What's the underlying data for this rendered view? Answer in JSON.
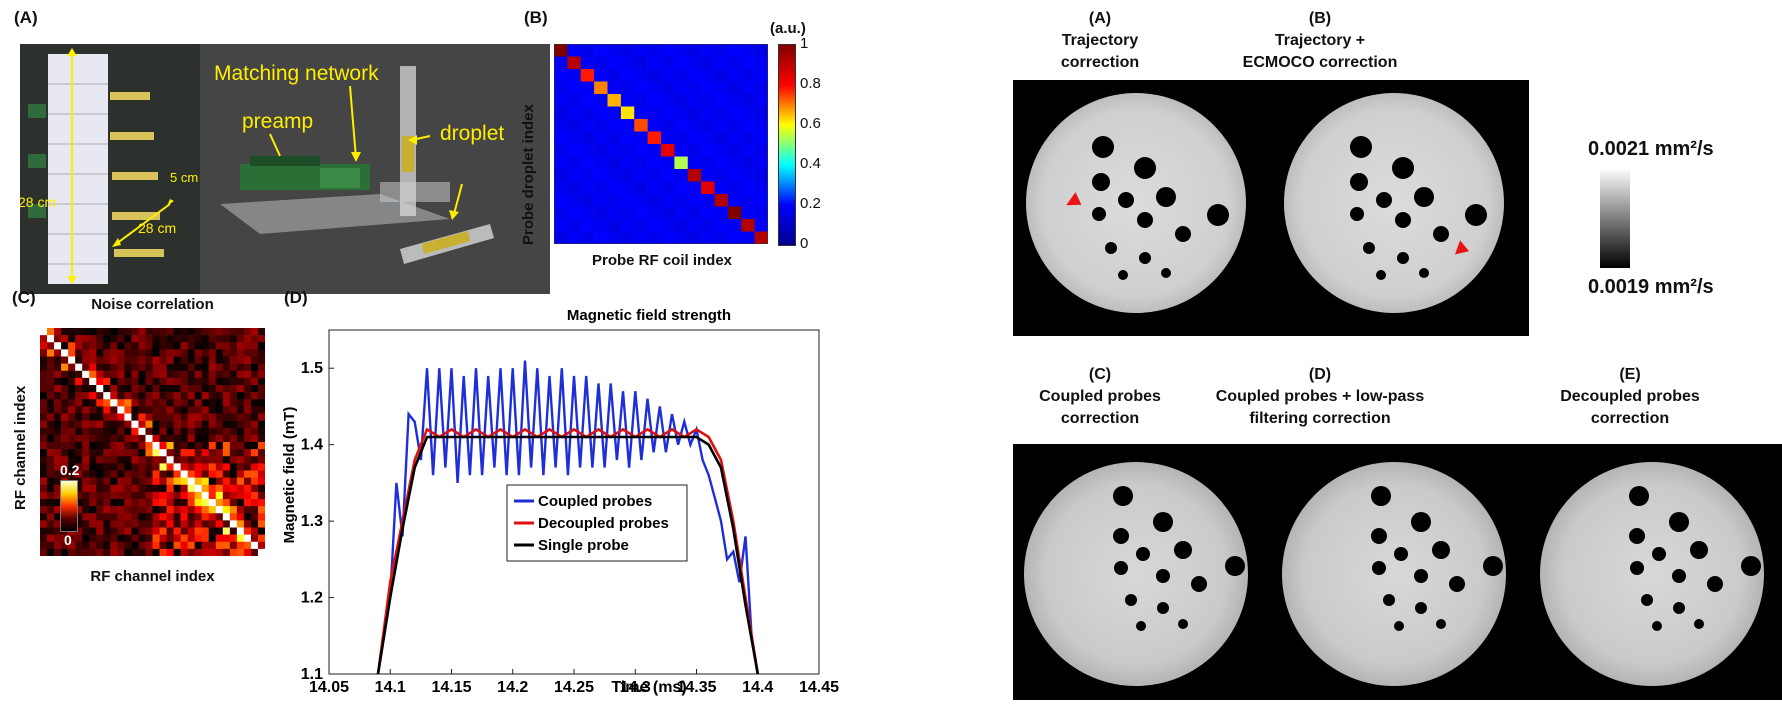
{
  "left_panel": {
    "photo": {
      "label": "(A)",
      "labels": {
        "matching_network": "Matching network",
        "preamp": "preamp",
        "droplet": "droplet",
        "dim_height": "28 cm",
        "dim_width": "28 cm",
        "dim_depth": "5 cm"
      }
    },
    "heatmap_b": {
      "label": "(B)",
      "unit": "(a.u.)",
      "ylabel": "Probe droplet index",
      "xlabel": "Probe RF coil index",
      "colorbar_ticks": [
        "1",
        "0.8",
        "0.6",
        "0.4",
        "0.2",
        "0"
      ]
    },
    "heatmap_c": {
      "label": "(C)",
      "title": "Noise correlation",
      "ylabel": "RF channel index",
      "xlabel": "RF channel index",
      "colorbar_max": "0.2",
      "colorbar_min": "0"
    },
    "plot_d": {
      "label": "(D)",
      "title": "Magnetic field strength",
      "ylabel": "Magnetic field (mT)",
      "xlabel": "Time (ms)",
      "x_ticks": [
        "14.05",
        "14.1",
        "14.15",
        "14.2",
        "14.25",
        "14.3",
        "14.35",
        "14.4",
        "14.45"
      ],
      "y_ticks": [
        "1.1",
        "1.2",
        "1.3",
        "1.4",
        "1.5"
      ],
      "legend": [
        "Coupled probes",
        "Decoupled probes",
        "Single probe"
      ]
    }
  },
  "right_panel": {
    "images": [
      {
        "label": "(A)",
        "line1": "Trajectory",
        "line2": "correction"
      },
      {
        "label": "(B)",
        "line1": "Trajectory +",
        "line2": "ECMOCO correction"
      },
      {
        "label": "(C)",
        "line1": "Coupled probes",
        "line2": "correction"
      },
      {
        "label": "(D)",
        "line1": "Coupled probes + low-pass",
        "line2": "filtering correction"
      },
      {
        "label": "(E)",
        "line1": "Decoupled probes",
        "line2": "correction"
      }
    ],
    "colorbar": {
      "max_label": "0.0021 mm²/s",
      "min_label": "0.0019 mm²/s"
    }
  },
  "chart_data": [
    {
      "type": "heatmap",
      "title": "",
      "xlabel": "Probe RF coil index",
      "ylabel": "Probe droplet index",
      "size": 16,
      "diagonal": [
        1.0,
        0.95,
        0.85,
        0.75,
        0.7,
        0.65,
        0.8,
        0.85,
        0.9,
        0.55,
        0.95,
        0.9,
        0.95,
        1.0,
        0.95,
        0.95
      ],
      "off_diagonal": 0.1,
      "colorbar_range": [
        0,
        1
      ]
    },
    {
      "type": "heatmap",
      "title": "Noise correlation",
      "xlabel": "RF channel index",
      "ylabel": "RF channel index",
      "size": 32,
      "colorbar_range": [
        0,
        0.2
      ]
    },
    {
      "type": "line",
      "title": "Magnetic field strength",
      "xlabel": "Time (ms)",
      "ylabel": "Magnetic field (mT)",
      "xlim": [
        14.05,
        14.45
      ],
      "ylim": [
        1.1,
        1.55
      ],
      "series": [
        {
          "name": "Coupled probes",
          "color": "#1f2fd8",
          "x": [
            14.09,
            14.1,
            14.105,
            14.11,
            14.115,
            14.12,
            14.125,
            14.13,
            14.135,
            14.14,
            14.145,
            14.15,
            14.155,
            14.16,
            14.165,
            14.17,
            14.175,
            14.18,
            14.185,
            14.19,
            14.195,
            14.2,
            14.205,
            14.21,
            14.215,
            14.22,
            14.225,
            14.23,
            14.235,
            14.24,
            14.245,
            14.25,
            14.255,
            14.26,
            14.265,
            14.27,
            14.275,
            14.28,
            14.285,
            14.29,
            14.295,
            14.3,
            14.305,
            14.31,
            14.315,
            14.32,
            14.325,
            14.33,
            14.335,
            14.34,
            14.345,
            14.35,
            14.355,
            14.36,
            14.365,
            14.37,
            14.375,
            14.38,
            14.385,
            14.39,
            14.395,
            14.4
          ],
          "y": [
            1.1,
            1.2,
            1.35,
            1.28,
            1.44,
            1.43,
            1.38,
            1.5,
            1.36,
            1.5,
            1.37,
            1.5,
            1.35,
            1.49,
            1.36,
            1.5,
            1.36,
            1.49,
            1.37,
            1.5,
            1.36,
            1.5,
            1.36,
            1.51,
            1.37,
            1.5,
            1.36,
            1.49,
            1.37,
            1.5,
            1.36,
            1.49,
            1.37,
            1.49,
            1.37,
            1.48,
            1.37,
            1.48,
            1.38,
            1.47,
            1.37,
            1.47,
            1.38,
            1.46,
            1.39,
            1.45,
            1.39,
            1.44,
            1.4,
            1.43,
            1.4,
            1.42,
            1.38,
            1.36,
            1.33,
            1.3,
            1.25,
            1.26,
            1.22,
            1.28,
            1.15,
            1.1
          ]
        },
        {
          "name": "Decoupled probes",
          "color": "#e01010",
          "x": [
            14.09,
            14.1,
            14.11,
            14.12,
            14.13,
            14.14,
            14.15,
            14.16,
            14.17,
            14.18,
            14.19,
            14.2,
            14.21,
            14.22,
            14.23,
            14.24,
            14.25,
            14.26,
            14.27,
            14.28,
            14.29,
            14.3,
            14.31,
            14.32,
            14.33,
            14.34,
            14.35,
            14.36,
            14.37,
            14.38,
            14.39,
            14.4
          ],
          "y": [
            1.1,
            1.22,
            1.3,
            1.38,
            1.42,
            1.41,
            1.42,
            1.41,
            1.42,
            1.41,
            1.42,
            1.41,
            1.42,
            1.41,
            1.42,
            1.41,
            1.42,
            1.41,
            1.42,
            1.41,
            1.42,
            1.41,
            1.42,
            1.41,
            1.42,
            1.41,
            1.42,
            1.41,
            1.38,
            1.3,
            1.2,
            1.1
          ]
        },
        {
          "name": "Single probe",
          "color": "#000000",
          "x": [
            14.09,
            14.1,
            14.11,
            14.12,
            14.13,
            14.14,
            14.15,
            14.16,
            14.17,
            14.18,
            14.19,
            14.2,
            14.21,
            14.22,
            14.23,
            14.24,
            14.25,
            14.26,
            14.27,
            14.28,
            14.29,
            14.3,
            14.31,
            14.32,
            14.33,
            14.34,
            14.35,
            14.36,
            14.37,
            14.38,
            14.39,
            14.4
          ],
          "y": [
            1.1,
            1.2,
            1.29,
            1.37,
            1.41,
            1.41,
            1.41,
            1.41,
            1.41,
            1.41,
            1.41,
            1.41,
            1.41,
            1.41,
            1.41,
            1.41,
            1.41,
            1.41,
            1.41,
            1.41,
            1.41,
            1.41,
            1.41,
            1.41,
            1.41,
            1.41,
            1.41,
            1.4,
            1.37,
            1.29,
            1.19,
            1.1
          ]
        }
      ]
    }
  ]
}
